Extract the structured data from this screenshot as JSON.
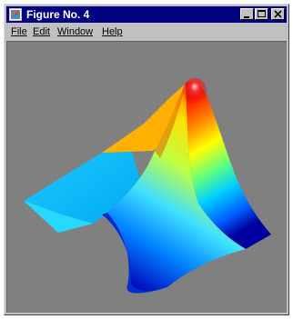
{
  "window": {
    "title": "Figure No. 4",
    "icon": "matlab-figure-icon",
    "buttons": [
      "minimize-icon",
      "maximize-icon",
      "close-icon"
    ]
  },
  "menu": {
    "items": [
      {
        "label": "File"
      },
      {
        "label": "Edit"
      },
      {
        "label": "Window"
      },
      {
        "label": "Help"
      }
    ]
  },
  "figure": {
    "background": "#808080",
    "surface": "peaks-style 3D surface"
  },
  "colors": {
    "titlebar": "#000080",
    "chrome": "#c0c0c0",
    "plot_background": "#808080"
  }
}
